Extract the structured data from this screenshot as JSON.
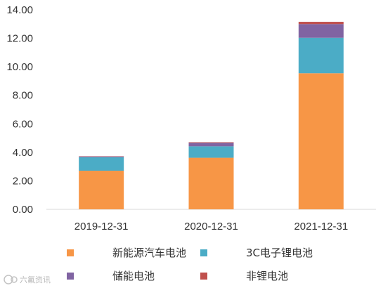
{
  "chart_data": {
    "type": "bar",
    "stacked": true,
    "categories": [
      "2019-12-31",
      "2020-12-31",
      "2021-12-31"
    ],
    "series": [
      {
        "name": "新能源汽车电池",
        "color": "#f79646",
        "values": [
          2.71,
          3.62,
          9.55
        ]
      },
      {
        "name": "3C电子锂电池",
        "color": "#4bacc6",
        "values": [
          0.95,
          0.8,
          2.49
        ]
      },
      {
        "name": "储能电池",
        "color": "#8064a2",
        "values": [
          0.05,
          0.25,
          0.96
        ]
      },
      {
        "name": "非锂电池",
        "color": "#c0504d",
        "values": [
          0.02,
          0.04,
          0.16
        ]
      }
    ],
    "ylim": [
      0,
      14
    ],
    "yticks": [
      "0.00",
      "2.00",
      "4.00",
      "6.00",
      "8.00",
      "10.00",
      "12.00",
      "14.00"
    ],
    "grid": false,
    "legend_position": "bottom",
    "title": "",
    "xlabel": "",
    "ylabel": ""
  },
  "watermark": {
    "text": "六氟资讯",
    "icon": "logo-icon"
  }
}
